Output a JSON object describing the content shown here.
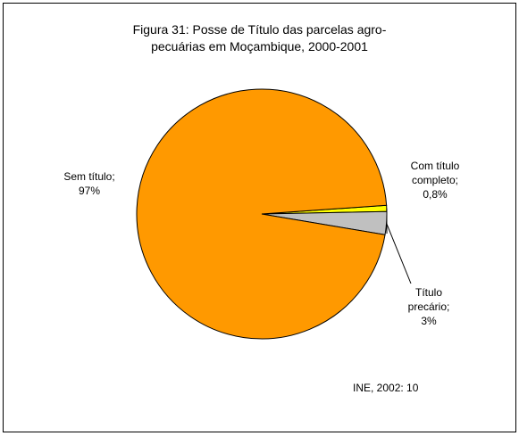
{
  "chart_data": {
    "type": "pie",
    "title": [
      "Figura 31: Posse de Título das parcelas agro-",
      "pecuárias em Moçambique, 2000-2001"
    ],
    "categories": [
      "Com título completo;",
      "Título precário;",
      "Sem título;"
    ],
    "values": [
      0.8,
      3,
      97
    ],
    "value_labels": [
      "0,8%",
      "3%",
      "97%"
    ],
    "colors": [
      "#ffff00",
      "#c0c0c0",
      "#ff9900"
    ],
    "source": "INE, 2002: 10"
  }
}
